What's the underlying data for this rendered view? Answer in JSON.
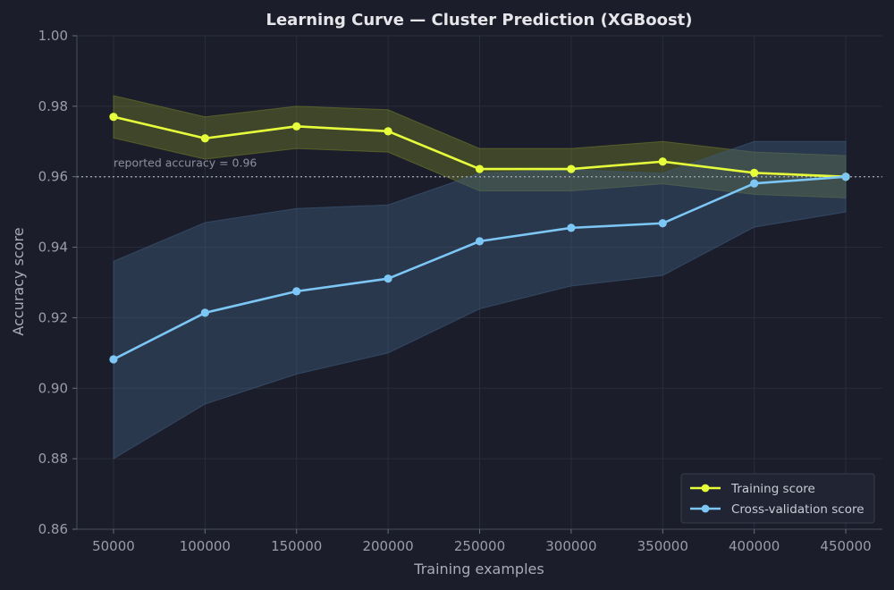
{
  "chart_data": {
    "type": "line",
    "title": "Learning Curve — Cluster Prediction (XGBoost)",
    "xlabel": "Training examples",
    "ylabel": "Accuracy score",
    "x": [
      50000,
      100000,
      150000,
      200000,
      250000,
      300000,
      350000,
      400000,
      450000
    ],
    "x_ticks": [
      "50000",
      "100000",
      "150000",
      "200000",
      "250000",
      "300000",
      "350000",
      "400000",
      "450000"
    ],
    "y_ticks": [
      "0.86",
      "0.88",
      "0.90",
      "0.92",
      "0.94",
      "0.96",
      "0.98",
      "1.00"
    ],
    "xlim": [
      30000,
      470000
    ],
    "ylim": [
      0.86,
      1.0
    ],
    "grid": true,
    "legend_position": "bottom-right",
    "series": [
      {
        "name": "Training score",
        "color": "#e6ff3a",
        "values": [
          0.977,
          0.9709,
          0.9743,
          0.9729,
          0.9622,
          0.9622,
          0.9643,
          0.9611,
          0.96
        ],
        "band_upper": [
          0.983,
          0.977,
          0.98,
          0.979,
          0.968,
          0.968,
          0.97,
          0.967,
          0.966
        ],
        "band_lower": [
          0.971,
          0.965,
          0.968,
          0.967,
          0.956,
          0.956,
          0.958,
          0.955,
          0.954
        ]
      },
      {
        "name": "Cross-validation score",
        "color": "#7cc7f5",
        "values": [
          0.9082,
          0.9214,
          0.9275,
          0.9311,
          0.9417,
          0.9455,
          0.9468,
          0.9581,
          0.96
        ],
        "band_upper": [
          0.936,
          0.947,
          0.951,
          0.952,
          0.961,
          0.962,
          0.961,
          0.97,
          0.97
        ],
        "band_lower": [
          0.88,
          0.8955,
          0.904,
          0.91,
          0.9225,
          0.929,
          0.932,
          0.9457,
          0.95
        ]
      }
    ],
    "annotations": [
      {
        "text": "reported accuracy = 0.96",
        "y": 0.96,
        "style": "dotted"
      }
    ]
  }
}
